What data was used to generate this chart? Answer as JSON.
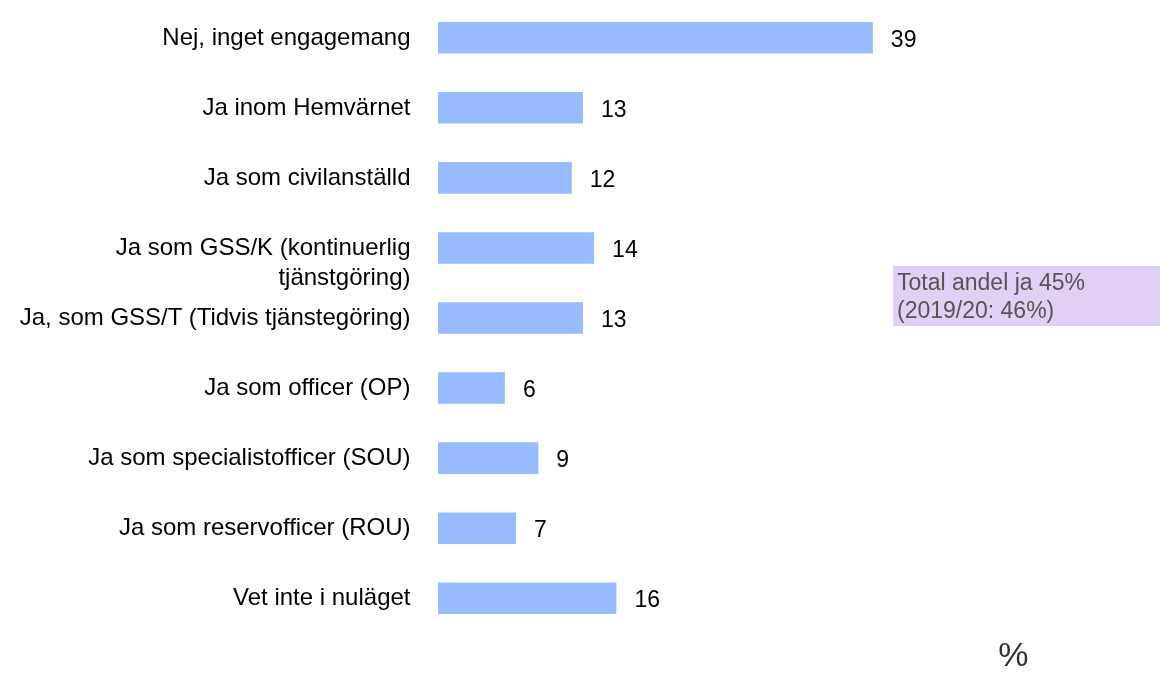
{
  "chart_data": {
    "type": "bar",
    "orientation": "horizontal",
    "xlabel": "%",
    "categories": [
      "Nej, inget engagemang",
      "Ja inom Hemvärnet",
      "Ja som civilanställd",
      "Ja som GSS/K (kontinuerlig\ntjänstgöring)",
      "Ja, som GSS/T (Tidvis tjänstegöring)",
      "Ja som officer (OP)",
      "Ja som specialistofficer (SOU)",
      "Ja som reservofficer (ROU)",
      "Vet inte i nuläget"
    ],
    "values": [
      39,
      13,
      12,
      14,
      13,
      6,
      9,
      7,
      16
    ],
    "color": "#99bbff",
    "data_labels": true,
    "annotations": [
      "Total andel ja 45%\n(2019/20: 46%)"
    ]
  }
}
